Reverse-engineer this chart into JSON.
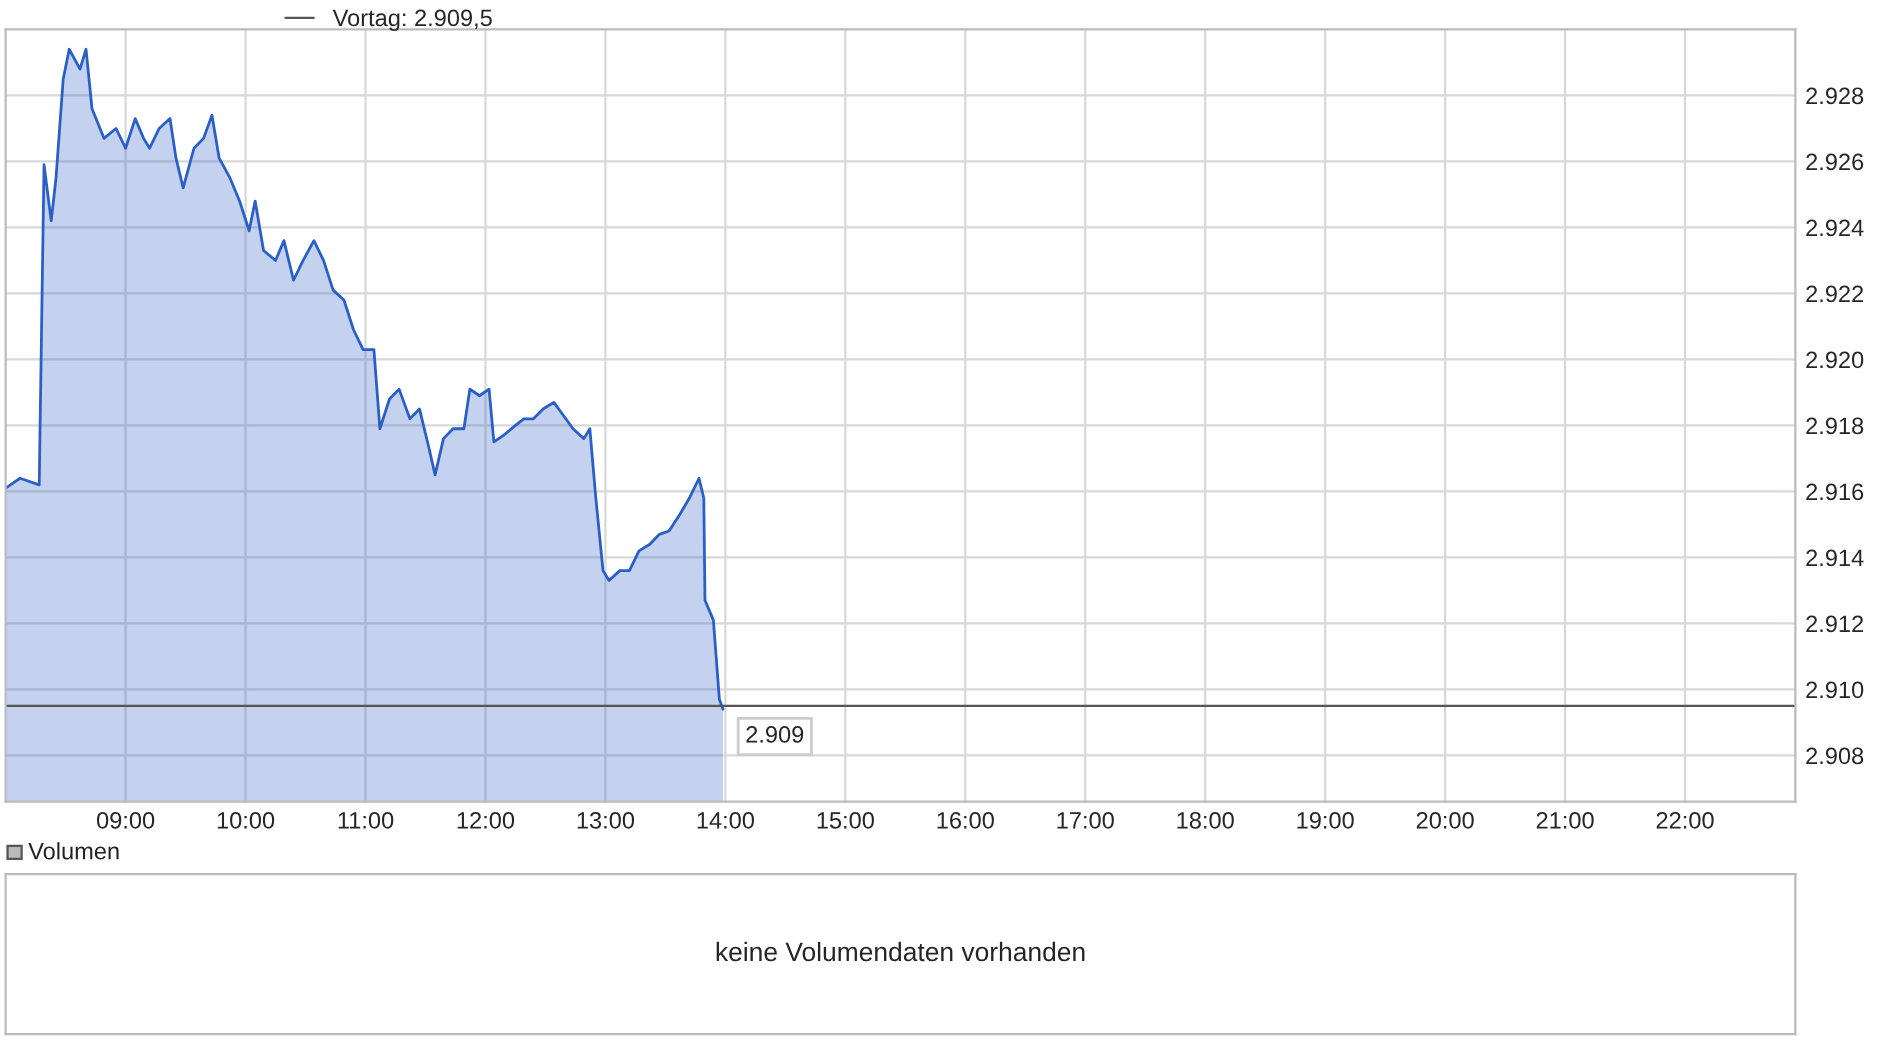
{
  "chart_data": [
    {
      "type": "area",
      "xlim": [
        8.0,
        22.92
      ],
      "ylim": [
        2906.6,
        2930
      ],
      "xticks": [
        {
          "value": 9,
          "label": "09:00"
        },
        {
          "value": 10,
          "label": "10:00"
        },
        {
          "value": 11,
          "label": "11:00"
        },
        {
          "value": 12,
          "label": "12:00"
        },
        {
          "value": 13,
          "label": "13:00"
        },
        {
          "value": 14,
          "label": "14:00"
        },
        {
          "value": 15,
          "label": "15:00"
        },
        {
          "value": 16,
          "label": "16:00"
        },
        {
          "value": 17,
          "label": "17:00"
        },
        {
          "value": 18,
          "label": "18:00"
        },
        {
          "value": 19,
          "label": "19:00"
        },
        {
          "value": 20,
          "label": "20:00"
        },
        {
          "value": 21,
          "label": "21:00"
        },
        {
          "value": 22,
          "label": "22:00"
        }
      ],
      "yticks": [
        {
          "value": 2908,
          "label": "2.908"
        },
        {
          "value": 2910,
          "label": "2.910"
        },
        {
          "value": 2912,
          "label": "2.912"
        },
        {
          "value": 2914,
          "label": "2.914"
        },
        {
          "value": 2916,
          "label": "2.916"
        },
        {
          "value": 2918,
          "label": "2.918"
        },
        {
          "value": 2920,
          "label": "2.920"
        },
        {
          "value": 2922,
          "label": "2.922"
        },
        {
          "value": 2924,
          "label": "2.924"
        },
        {
          "value": 2926,
          "label": "2.926"
        },
        {
          "value": 2928,
          "label": "2.928"
        }
      ],
      "grid": true,
      "series": [
        {
          "color": "#2a5fc8",
          "x": [
            8.0,
            8.12,
            8.28,
            8.32,
            8.38,
            8.42,
            8.48,
            8.53,
            8.62,
            8.67,
            8.72,
            8.82,
            8.92,
            9.0,
            9.08,
            9.15,
            9.2,
            9.28,
            9.37,
            9.42,
            9.48,
            9.57,
            9.65,
            9.72,
            9.78,
            9.87,
            9.95,
            10.03,
            10.08,
            10.15,
            10.25,
            10.32,
            10.4,
            10.48,
            10.57,
            10.65,
            10.73,
            10.82,
            10.9,
            10.98,
            11.07,
            11.12,
            11.2,
            11.28,
            11.37,
            11.45,
            11.53,
            11.58,
            11.65,
            11.73,
            11.82,
            11.87,
            11.95,
            12.03,
            12.07,
            12.15,
            12.25,
            12.32,
            12.4,
            12.48,
            12.57,
            12.65,
            12.73,
            12.82,
            12.87,
            12.92,
            12.98,
            13.03,
            13.12,
            13.2,
            13.28,
            13.37,
            13.45,
            13.53,
            13.62,
            13.7,
            13.78,
            13.82,
            13.83,
            13.9,
            13.95,
            13.98
          ],
          "values": [
            2916.1,
            2916.4,
            2916.2,
            2925.9,
            2924.2,
            2925.5,
            2928.5,
            2929.4,
            2928.8,
            2929.4,
            2927.6,
            2926.7,
            2927.0,
            2926.4,
            2927.3,
            2926.7,
            2926.4,
            2927.0,
            2927.3,
            2926.1,
            2925.2,
            2926.4,
            2926.7,
            2927.4,
            2926.1,
            2925.5,
            2924.8,
            2923.9,
            2924.8,
            2923.3,
            2923.0,
            2923.6,
            2922.4,
            2923.0,
            2923.6,
            2923.0,
            2922.1,
            2921.8,
            2920.9,
            2920.3,
            2920.3,
            2917.9,
            2918.8,
            2919.1,
            2918.2,
            2918.5,
            2917.3,
            2916.5,
            2917.6,
            2917.9,
            2917.9,
            2919.1,
            2918.9,
            2919.1,
            2917.5,
            2917.7,
            2918.0,
            2918.2,
            2918.2,
            2918.5,
            2918.7,
            2918.3,
            2917.9,
            2917.6,
            2917.9,
            2915.8,
            2913.6,
            2913.3,
            2913.6,
            2913.6,
            2914.2,
            2914.4,
            2914.7,
            2914.8,
            2915.3,
            2915.8,
            2916.4,
            2915.8,
            2912.7,
            2912.1,
            2909.7,
            2909.4
          ]
        }
      ],
      "ref_lines": [
        {
          "axis": "y",
          "value": 2909.5,
          "label": "Vortag: 2.909,5",
          "color": "#555555"
        }
      ],
      "annotations": [
        {
          "text": "2.909",
          "x": 13.98,
          "y": 2909.4
        }
      ]
    },
    {
      "type": "other",
      "title": "Volumen",
      "annotations": [
        "keine Volumendaten vorhanden"
      ]
    }
  ]
}
